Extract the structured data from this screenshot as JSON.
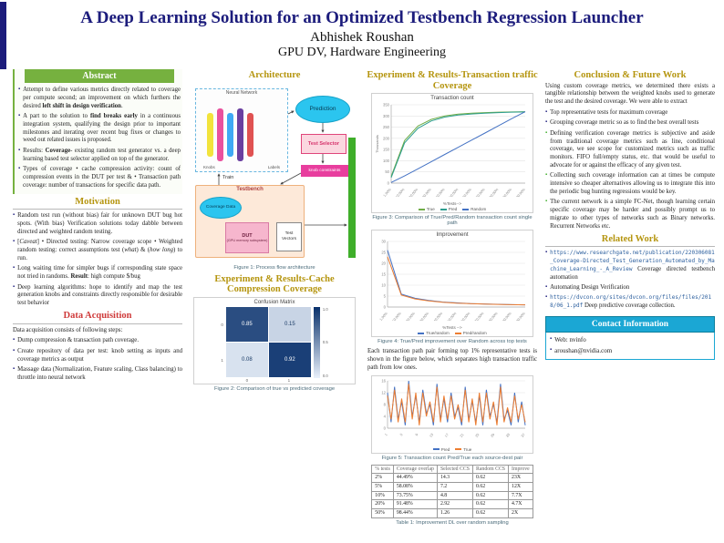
{
  "header": {
    "title": "A Deep Learning Solution for an Optimized Testbench Regression Launcher",
    "author": "Abhishek Roushan",
    "affiliation": "GPU DV, Hardware Engineering"
  },
  "abstract": {
    "heading": "Abstract",
    "items": [
      {
        "segments": [
          {
            "t": "Attempt to define various metrics directly related to coverage per compute second; an improvement on which furthers the desired "
          },
          {
            "t": "left shift in design verification",
            "b": true
          },
          {
            "t": "."
          }
        ]
      },
      {
        "segments": [
          {
            "t": "A part to the solution to "
          },
          {
            "t": "find breaks early",
            "b": true
          },
          {
            "t": " in a continuous integration system, qualifying the design prior to important milestones and iterating over recent bug fixes or changes to weed out related issues is proposed."
          }
        ]
      },
      {
        "segments": [
          {
            "t": "Results: "
          },
          {
            "t": "Coverage",
            "b": true
          },
          {
            "t": "- existing random test generator vs. a deep learning based test selector applied on top of the generator."
          }
        ]
      },
      {
        "segments": [
          {
            "t": "Types of coverage • cache compression activity: count of compression events in the DUT per test & • Transaction path coverage: number of transactions for specific data path."
          }
        ]
      }
    ]
  },
  "motivation": {
    "heading": "Motivation",
    "items": [
      {
        "segments": [
          {
            "t": "Random test run (without bias) fair for unknown DUT bug hot spots. (With bias) Verification solutions today dabble between directed and weighted random testing."
          }
        ]
      },
      {
        "segments": [
          {
            "t": "["
          },
          {
            "t": "Caveat",
            "i": true
          },
          {
            "t": "] • Directed testing: Narrow coverage scope • Weighted random testing: correct assumptions test ("
          },
          {
            "t": "what",
            "i": true
          },
          {
            "t": ") & ("
          },
          {
            "t": "how long",
            "i": true
          },
          {
            "t": ") to run."
          }
        ]
      },
      {
        "segments": [
          {
            "t": "Long waiting time for simpler bugs if corresponding state space not tried in randoms. "
          },
          {
            "t": "Result",
            "b": true
          },
          {
            "t": ": high compute $/bug"
          }
        ]
      },
      {
        "segments": [
          {
            "t": "Deep learning algorithms: hope to identify and map the test generation knobs and constraints directly responsible for desirable test behavior"
          }
        ]
      }
    ]
  },
  "data_acquisition": {
    "heading": "Data Acquisition",
    "intro": "Data acquisition consists of following steps:",
    "items": [
      {
        "text": "Dump compression & transaction path coverage."
      },
      {
        "text": "Create repository of data per test: knob setting as inputs and coverage metrics as output"
      },
      {
        "text": "Massage data (Normalization, Feature scaling, Class balancing) to throttle into neural network"
      }
    ]
  },
  "architecture": {
    "heading": "Architecture",
    "caption": "Figure 1: Process flow architecture",
    "labels": {
      "neural_network": "Neural Network",
      "knobs": "Knobs",
      "labels_out": "Labels",
      "prediction": "Prediction",
      "test_selector": "Test Selector",
      "knob_constraints": "knob constraints",
      "train": "Train",
      "testbench": "Testbench",
      "coverage_data": "Coverage Data",
      "dut": "DUT",
      "dut_sub": "(GPU memory subsystem)",
      "test_vectors": "Test Vectors"
    }
  },
  "cache_results": {
    "heading": "Experiment & Results-Cache Compression Coverage",
    "caption": "Figure 2: Comparison of true vs predicted coverage"
  },
  "transaction_results": {
    "heading": "Experiment & Results-Transaction traffic Coverage",
    "fig3_caption": "Figure 3: Comparison of True/Pred/Random transaction count single path",
    "fig4_caption": "Figure 4: True/Pred improvement over Random across top tests",
    "paragraph": "Each transaction path pair forming top 1% representative tests is shown in the figure below, which separates high transaction traffic path from low ones.",
    "fig5_caption": "Figure 5: Transaction count Pred/True each source-dest pair",
    "table_caption": "Table 1: Improvement DL over random sampling"
  },
  "table1": {
    "headers": [
      "% tests",
      "Coverage overlap",
      "Selected CCS",
      "Random CCS",
      "Improve"
    ],
    "rows": [
      [
        "2%",
        "44.49%",
        "14.3",
        "0.62",
        "23X"
      ],
      [
        "5%",
        "58.08%",
        "7.2",
        "0.62",
        "12X"
      ],
      [
        "10%",
        "73.75%",
        "4.8",
        "0.62",
        "7.7X"
      ],
      [
        "20%",
        "91.48%",
        "2.92",
        "0.62",
        "4.7X"
      ],
      [
        "50%",
        "98.44%",
        "1.26",
        "0.62",
        "2X"
      ]
    ]
  },
  "conclusion": {
    "heading": "Conclusion & Future Work",
    "intro": "Using custom coverage metrics, we determined there exists a tangible relationship between the weighted knobs used to generate the test and the desired coverage. We were able to extract",
    "items": [
      {
        "text": "Top representative tests for maximum coverage"
      },
      {
        "text": "Grouping coverage metric so as to find the best overall tests"
      },
      {
        "green": true,
        "text": "Defining verification coverage metrics is subjective and aside from traditional coverage metrics such as line, conditional coverage, we see scope for customized metrics such as traffic monitors. FIFO full/empty status, etc. that would be useful to advocate for or against the efficacy of any given test."
      },
      {
        "green": true,
        "text": "Collecting such coverage information can at times be compute intensive so cheaper alternatives allowing us to integrate this into the periodic bug hunting regressions would be key."
      },
      {
        "green": true,
        "text": "The current network is a simple FC-Net, though learning certain specific coverage may be harder and possibly prompt us to migrate to other types of networks such as Binary networks. Recurrent Networks etc."
      }
    ]
  },
  "related_work": {
    "heading": "Related Work",
    "items": [
      {
        "link": true,
        "segments": [
          {
            "t": "https://www.researchgate.net/publication/220306081_Coverage-Directed_Test_Generation_Automated_by_Machine_Learning_-_A_Review",
            "mono": true
          },
          {
            "t": " Coverage directed testbench automation"
          }
        ]
      },
      {
        "text": "Automating Design Verification"
      },
      {
        "link": true,
        "segments": [
          {
            "t": "https://dvcon.org/sites/dvcon.org/files/files/2018/06_1.pdf",
            "mono": true
          },
          {
            "t": " Deep predictive coverage collection."
          }
        ]
      }
    ]
  },
  "contact": {
    "heading": "Contact Information",
    "items": [
      {
        "text": "Web: nvinfo"
      },
      {
        "link": true,
        "text": "aroushan@nvidia.com"
      }
    ]
  },
  "chart_data": [
    {
      "id": "fig2",
      "type": "heatmap",
      "title": "Confusion Matrix",
      "row_labels": [
        "0",
        "1"
      ],
      "col_labels": [
        "0",
        "1"
      ],
      "values": [
        [
          0.85,
          0.15
        ],
        [
          0.08,
          0.92
        ]
      ],
      "colorbar_labels": [
        "1.0",
        "0.5",
        "0.0"
      ]
    },
    {
      "id": "fig3",
      "type": "line",
      "title": "Transaction count",
      "ylabel": "Thousands",
      "xlabel": "%Tests-->",
      "ylim": [
        0,
        350
      ],
      "yticks": [
        0,
        50,
        100,
        150,
        200,
        250,
        300,
        350
      ],
      "x_labels": [
        "1.00%",
        "10.00%",
        "20.00%",
        "30.00%",
        "40.00%",
        "50.00%",
        "60.00%",
        "70.00%",
        "80.00%",
        "90.00%",
        "100.00%"
      ],
      "series": [
        {
          "name": "True",
          "color": "#70ad47",
          "values": [
            30,
            190,
            255,
            285,
            300,
            308,
            312,
            315,
            317,
            318,
            319
          ]
        },
        {
          "name": "Pred",
          "color": "#2e9e8f",
          "values": [
            25,
            180,
            245,
            278,
            295,
            304,
            309,
            312,
            315,
            317,
            318
          ]
        },
        {
          "name": "Random",
          "color": "#4472c4",
          "values": [
            3,
            32,
            64,
            96,
            128,
            160,
            192,
            224,
            256,
            288,
            319
          ]
        }
      ]
    },
    {
      "id": "fig4",
      "type": "line",
      "title": "Improvement",
      "xlabel": "%Tests -->",
      "ylim": [
        0,
        30
      ],
      "yticks": [
        0,
        5,
        10,
        15,
        20,
        25,
        30
      ],
      "x_labels": [
        "1.00%",
        "10.00%",
        "20.00%",
        "30.00%",
        "40.00%",
        "50.00%",
        "60.00%",
        "70.00%",
        "80.00%",
        "90.00%",
        "100.00%"
      ],
      "series": [
        {
          "name": "True/random",
          "color": "#4472c4",
          "values": [
            26,
            5.9,
            4.0,
            3.0,
            2.3,
            1.9,
            1.6,
            1.4,
            1.25,
            1.1,
            1.0
          ]
        },
        {
          "name": "Pred/random",
          "color": "#ed7d31",
          "values": [
            23,
            5.5,
            3.7,
            2.8,
            2.2,
            1.8,
            1.55,
            1.35,
            1.2,
            1.08,
            1.0
          ]
        }
      ]
    },
    {
      "id": "fig5",
      "type": "line",
      "title": "",
      "ylim": [
        0,
        16
      ],
      "yticks": [
        0,
        4,
        8,
        12,
        16
      ],
      "x_labels": [
        "1",
        "5",
        "9",
        "13",
        "17",
        "21",
        "25",
        "29",
        "33",
        "37"
      ],
      "series": [
        {
          "name": "Pred",
          "color": "#4472c4",
          "values": [
            12,
            2,
            14,
            3,
            9,
            1,
            16,
            4,
            11,
            2,
            13,
            5,
            8,
            1,
            15,
            3,
            10,
            2,
            12,
            4,
            7,
            1,
            14,
            3,
            9,
            2,
            11,
            1,
            13,
            4,
            8,
            2,
            15,
            3,
            6,
            1,
            12,
            2,
            9,
            1
          ]
        },
        {
          "name": "True",
          "color": "#ed7d31",
          "values": [
            11,
            3,
            13,
            2,
            10,
            2,
            15,
            3,
            12,
            1,
            12,
            4,
            9,
            2,
            14,
            2,
            11,
            3,
            11,
            3,
            8,
            2,
            13,
            2,
            10,
            1,
            12,
            2,
            12,
            3,
            9,
            1,
            14,
            2,
            7,
            2,
            11,
            3,
            8,
            2
          ]
        }
      ]
    }
  ]
}
